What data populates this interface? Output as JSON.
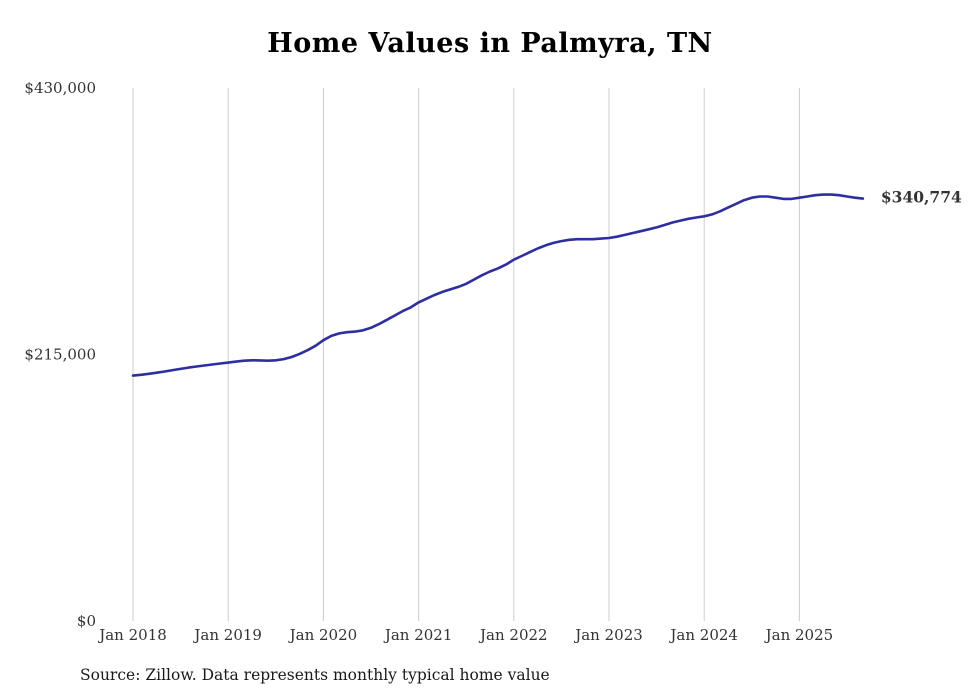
{
  "title": "Home Values in Palmyra, TN",
  "source_note": "Source: Zillow. Data represents monthly typical home value",
  "colors": {
    "line": "#2e2ea2",
    "grid": "#cccccc",
    "axis_text": "#333333",
    "end_label": "#2e2ea2",
    "title": "#000000",
    "background": "#ffffff"
  },
  "chart_data": {
    "type": "line",
    "title": "Home Values in Palmyra, TN",
    "frequency": "monthly",
    "x_start": "Jan 2018",
    "x_end": "Sep 2025",
    "x_tick_labels": [
      "Jan 2018",
      "Jan 2019",
      "Jan 2020",
      "Jan 2021",
      "Jan 2022",
      "Jan 2023",
      "Jan 2024",
      "Jan 2025"
    ],
    "y_ticks": [
      {
        "value": 0,
        "label": "$0"
      },
      {
        "value": 215000,
        "label": "$215,000"
      },
      {
        "value": 430000,
        "label": "$430,000"
      }
    ],
    "ylim": [
      0,
      430000
    ],
    "grid": "vertical-only",
    "legend": "none",
    "end_label": "$340,774",
    "latest_value": 340774,
    "source": "Zillow",
    "series": [
      {
        "name": "Typical home value",
        "values": [
          198000,
          198600,
          199400,
          200300,
          201300,
          202400,
          203400,
          204400,
          205300,
          206100,
          206900,
          207700,
          208500,
          209300,
          210000,
          210300,
          210200,
          210000,
          210300,
          211300,
          213000,
          215500,
          218500,
          222000,
          226500,
          230000,
          232000,
          233000,
          233500,
          234500,
          236500,
          239500,
          243000,
          246500,
          250000,
          253000,
          257000,
          260000,
          263000,
          265500,
          267500,
          269500,
          272000,
          275500,
          279000,
          282000,
          284500,
          287500,
          291500,
          294500,
          297500,
          300500,
          303000,
          305000,
          306500,
          307500,
          308000,
          308000,
          308000,
          308500,
          309000,
          310000,
          311500,
          313000,
          314500,
          316000,
          317500,
          319500,
          321500,
          323000,
          324500,
          325500,
          326500,
          328000,
          330500,
          333500,
          336500,
          339500,
          341500,
          342500,
          342500,
          341500,
          340500,
          340500,
          341500,
          342500,
          343500,
          344000,
          344000,
          343500,
          342500,
          341500,
          340774
        ]
      }
    ]
  }
}
